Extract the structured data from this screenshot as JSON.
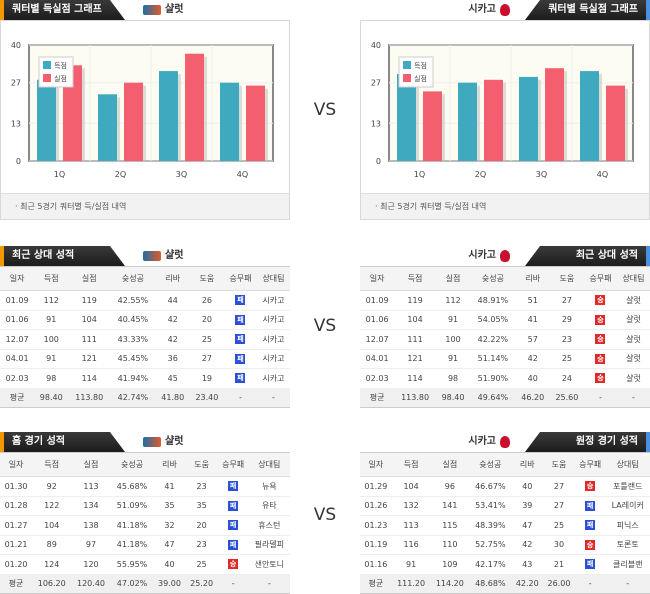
{
  "vs_label": "VS",
  "colors": {
    "score": "#3fa9bf",
    "allowed": "#f35f6e",
    "win": "#e02a2a",
    "loss": "#2b4fd6"
  },
  "charts": {
    "title": "쿼터별 득실점 그래프",
    "footnote": "최근 5경기 쿼터별 득/실점 내역",
    "legend": [
      "득점",
      "실점"
    ],
    "left": {
      "team": "샬럿",
      "chart_data": {
        "type": "bar",
        "categories": [
          "1Q",
          "2Q",
          "3Q",
          "4Q"
        ],
        "yticks": [
          0,
          13,
          27,
          40
        ],
        "ylim": [
          0,
          40
        ],
        "series": [
          {
            "name": "득점",
            "values": [
              28,
              23,
              31,
              27
            ]
          },
          {
            "name": "실점",
            "values": [
              33,
              27,
              37,
              26
            ]
          }
        ]
      }
    },
    "right": {
      "team": "시카고",
      "chart_data": {
        "type": "bar",
        "categories": [
          "1Q",
          "2Q",
          "3Q",
          "4Q"
        ],
        "yticks": [
          0,
          13,
          27,
          40
        ],
        "ylim": [
          0,
          40
        ],
        "series": [
          {
            "name": "득점",
            "values": [
              30,
              27,
              29,
              31
            ]
          },
          {
            "name": "실점",
            "values": [
              24,
              28,
              32,
              26
            ]
          }
        ]
      }
    }
  },
  "columns": [
    "일자",
    "득점",
    "실점",
    "슛성공",
    "리바",
    "도움",
    "승무패",
    "상대팀"
  ],
  "tables": [
    {
      "id": "h2h-left",
      "title": "최근 상대 성적",
      "team": "샬럿",
      "rows": [
        [
          "01.09",
          "112",
          "119",
          "42.55%",
          "44",
          "26",
          "패",
          "시카고"
        ],
        [
          "01.06",
          "91",
          "104",
          "40.45%",
          "42",
          "20",
          "패",
          "시카고"
        ],
        [
          "12.07",
          "100",
          "111",
          "43.33%",
          "42",
          "25",
          "패",
          "시카고"
        ],
        [
          "04.01",
          "91",
          "121",
          "45.45%",
          "36",
          "27",
          "패",
          "시카고"
        ],
        [
          "02.03",
          "98",
          "114",
          "41.94%",
          "45",
          "19",
          "패",
          "시카고"
        ]
      ],
      "avg": [
        "평균",
        "98.40",
        "113.80",
        "42.74%",
        "41.80",
        "23.40",
        "-",
        "-"
      ]
    },
    {
      "id": "h2h-right",
      "title": "최근 상대 성적",
      "team": "시카고",
      "rows": [
        [
          "01.09",
          "119",
          "112",
          "48.91%",
          "51",
          "27",
          "승",
          "샬럿"
        ],
        [
          "01.06",
          "104",
          "91",
          "54.05%",
          "41",
          "29",
          "승",
          "샬럿"
        ],
        [
          "12.07",
          "111",
          "100",
          "42.22%",
          "57",
          "23",
          "승",
          "샬럿"
        ],
        [
          "04.01",
          "121",
          "91",
          "51.14%",
          "42",
          "25",
          "승",
          "샬럿"
        ],
        [
          "02.03",
          "114",
          "98",
          "51.90%",
          "40",
          "24",
          "승",
          "샬럿"
        ]
      ],
      "avg": [
        "평균",
        "113.80",
        "98.40",
        "49.64%",
        "46.20",
        "25.60",
        "-",
        "-"
      ]
    },
    {
      "id": "home-left",
      "title": "홈 경기 성적",
      "team": "샬럿",
      "rows": [
        [
          "01.30",
          "92",
          "113",
          "45.68%",
          "41",
          "23",
          "패",
          "뉴욕"
        ],
        [
          "01.28",
          "122",
          "134",
          "51.09%",
          "35",
          "35",
          "패",
          "유타"
        ],
        [
          "01.27",
          "104",
          "138",
          "41.18%",
          "32",
          "20",
          "패",
          "휴스턴"
        ],
        [
          "01.21",
          "89",
          "97",
          "41.18%",
          "47",
          "23",
          "패",
          "필라델피"
        ],
        [
          "01.20",
          "124",
          "120",
          "55.95%",
          "40",
          "25",
          "승",
          "샌안토니"
        ]
      ],
      "avg": [
        "평균",
        "106.20",
        "120.40",
        "47.02%",
        "39.00",
        "25.20",
        "-",
        "-"
      ]
    },
    {
      "id": "away-right",
      "title": "원정 경기 성적",
      "team": "시카고",
      "rows": [
        [
          "01.29",
          "104",
          "96",
          "46.67%",
          "40",
          "27",
          "승",
          "포틀랜드"
        ],
        [
          "01.26",
          "132",
          "141",
          "53.41%",
          "39",
          "27",
          "패",
          "LA레이커"
        ],
        [
          "01.23",
          "113",
          "115",
          "48.39%",
          "47",
          "25",
          "패",
          "피닉스"
        ],
        [
          "01.19",
          "116",
          "110",
          "52.75%",
          "42",
          "30",
          "승",
          "토론토"
        ],
        [
          "01.16",
          "91",
          "109",
          "42.17%",
          "43",
          "21",
          "패",
          "클리블랜"
        ]
      ],
      "avg": [
        "평균",
        "111.20",
        "114.20",
        "48.68%",
        "42.20",
        "26.00",
        "-",
        "-"
      ]
    }
  ]
}
